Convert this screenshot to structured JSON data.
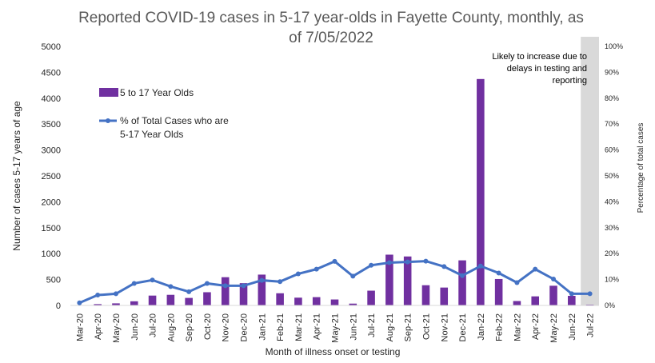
{
  "chart_data": {
    "type": "bar",
    "title_lines": [
      "Reported COVID-19 cases in 5-17 year-olds in Fayette County, monthly, as",
      "of 7/05/2022"
    ],
    "xlabel": "Month of illness onset or testing",
    "ylabel": "Number of cases 5-17 years of age",
    "y2label": "Percentage of total cases",
    "ylim": [
      0,
      5000
    ],
    "yticks": [
      "0",
      "500",
      "1000",
      "1500",
      "2000",
      "2500",
      "3000",
      "3500",
      "4000",
      "4500",
      "5000"
    ],
    "y2lim": [
      0,
      100
    ],
    "y2ticks": [
      "0%",
      "10%",
      "20%",
      "30%",
      "40%",
      "50%",
      "60%",
      "70%",
      "80%",
      "90%",
      "100%"
    ],
    "categories": [
      "Mar-20",
      "Apr-20",
      "May-20",
      "Jun-20",
      "Jul-20",
      "Aug-20",
      "Sep-20",
      "Oct-20",
      "Nov-20",
      "Dec-20",
      "Jan-21",
      "Feb-21",
      "Mar-21",
      "Apr-21",
      "May-21",
      "Jun-21",
      "Jul-21",
      "Aug-21",
      "Sep-21",
      "Oct-21",
      "Nov-21",
      "Dec-21",
      "Jan-22",
      "Feb-22",
      "Mar-22",
      "Apr-22",
      "May-22",
      "Jun-22",
      "Jul-22"
    ],
    "series": [
      {
        "name": "5 to 17 Year Olds",
        "type": "bar",
        "axis": "left",
        "color": "#7030A0",
        "values": [
          5,
          25,
          40,
          80,
          190,
          205,
          145,
          255,
          545,
          430,
          595,
          235,
          150,
          160,
          115,
          35,
          285,
          980,
          945,
          390,
          345,
          870,
          4370,
          510,
          85,
          175,
          380,
          185,
          15
        ]
      },
      {
        "name_lines": [
          "% of Total Cases who are",
          "5-17 Year Olds"
        ],
        "type": "line",
        "axis": "right",
        "color": "#4472C4",
        "values": [
          1,
          4,
          4.5,
          8.5,
          9.8,
          7.3,
          5.3,
          8.5,
          7.6,
          7.6,
          9.7,
          9.2,
          12.2,
          14,
          17,
          11.3,
          15.5,
          16.5,
          16.8,
          17.1,
          15,
          11.5,
          15.2,
          12.5,
          8.8,
          14,
          10.2,
          4.5,
          4.5
        ]
      }
    ],
    "shaded_category": "Jul-22",
    "annotation_lines": [
      "Likely to increase due to",
      "delays in testing and",
      "reporting"
    ],
    "legend_position": "top-left",
    "grid": false
  }
}
